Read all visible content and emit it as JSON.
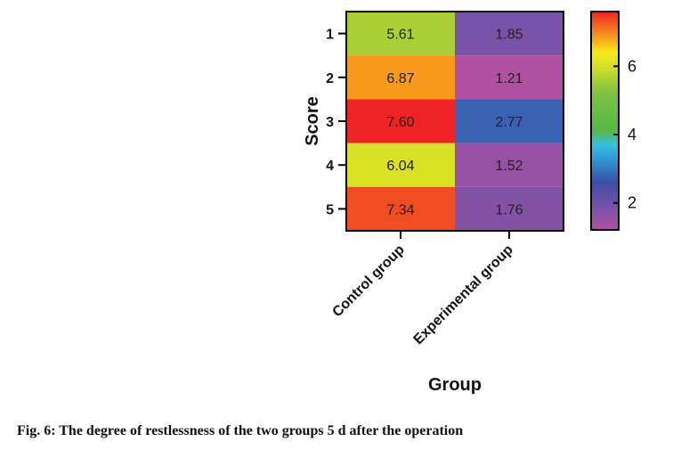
{
  "chart_data": {
    "type": "heatmap",
    "xlabel": "Group",
    "ylabel": "Score",
    "x_categories": [
      "Control group",
      "Experimental group"
    ],
    "y_categories": [
      "1",
      "2",
      "3",
      "4",
      "5"
    ],
    "values": [
      [
        5.61,
        1.85
      ],
      [
        6.87,
        1.21
      ],
      [
        7.6,
        2.77
      ],
      [
        6.04,
        1.52
      ],
      [
        7.34,
        1.76
      ]
    ],
    "value_labels": [
      [
        "5.61",
        "1.85"
      ],
      [
        "6.87",
        "1.21"
      ],
      [
        "7.60",
        "2.77"
      ],
      [
        "6.04",
        "1.52"
      ],
      [
        "7.34",
        "1.76"
      ]
    ],
    "colorbar": {
      "range": [
        1.21,
        7.6
      ],
      "ticks": [
        2,
        4,
        6
      ],
      "tick_labels": [
        "2",
        "4",
        "6"
      ],
      "colormap": [
        [
          1.21,
          "#b14fa1"
        ],
        [
          1.85,
          "#7a53a8"
        ],
        [
          2.6,
          "#3c4ea8"
        ],
        [
          3.2,
          "#2f8fd0"
        ],
        [
          3.7,
          "#36c0e0"
        ],
        [
          4.1,
          "#56b848"
        ],
        [
          5.2,
          "#7cc142"
        ],
        [
          6.0,
          "#d6df28"
        ],
        [
          6.4,
          "#f7ea18"
        ],
        [
          6.9,
          "#f7941d"
        ],
        [
          7.6,
          "#ee2325"
        ]
      ]
    }
  },
  "caption": "Fig. 6: The degree of restlessness of the two groups 5 d after the operation"
}
